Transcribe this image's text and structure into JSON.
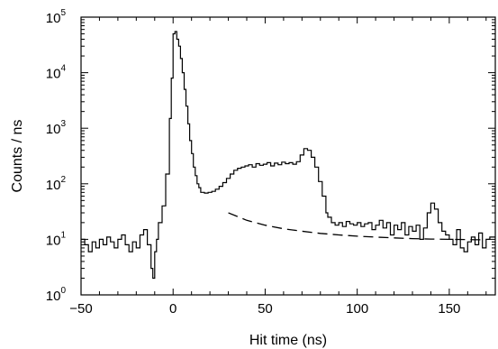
{
  "chart_data": {
    "type": "line",
    "xlabel": "Hit time (ns)",
    "ylabel": "Counts / ns",
    "xlim": [
      -50,
      175
    ],
    "ylim": [
      1,
      100000
    ],
    "yscale": "log",
    "grid": false,
    "x_ticks": [
      -50,
      0,
      50,
      100,
      150
    ],
    "x_tick_labels": [
      "−50",
      "0",
      "50",
      "100",
      "150"
    ],
    "y_ticks": [
      1,
      10,
      100,
      1000,
      10000,
      100000
    ],
    "y_tick_labels": [
      {
        "base": "10",
        "exp": "0"
      },
      {
        "base": "10",
        "exp": "1"
      },
      {
        "base": "10",
        "exp": "2"
      },
      {
        "base": "10",
        "exp": "3"
      },
      {
        "base": "10",
        "exp": "4"
      },
      {
        "base": "10",
        "exp": "5"
      }
    ],
    "series": [
      {
        "style": "histogram-step",
        "color": "#000000",
        "points": [
          [
            -50,
            10
          ],
          [
            -48,
            8
          ],
          [
            -46,
            6
          ],
          [
            -44,
            9
          ],
          [
            -42,
            7
          ],
          [
            -40,
            10
          ],
          [
            -38,
            8
          ],
          [
            -36,
            11
          ],
          [
            -34,
            9
          ],
          [
            -32,
            7
          ],
          [
            -30,
            10
          ],
          [
            -28,
            12
          ],
          [
            -26,
            8
          ],
          [
            -24,
            6
          ],
          [
            -22,
            9
          ],
          [
            -20,
            7
          ],
          [
            -18,
            12
          ],
          [
            -16,
            15
          ],
          [
            -14,
            8
          ],
          [
            -12,
            3
          ],
          [
            -11,
            2
          ],
          [
            -10,
            6
          ],
          [
            -9,
            10
          ],
          [
            -8,
            20
          ],
          [
            -6,
            40
          ],
          [
            -4,
            150
          ],
          [
            -2,
            1500
          ],
          [
            -1,
            8000
          ],
          [
            0,
            50000
          ],
          [
            1,
            55000
          ],
          [
            2,
            40000
          ],
          [
            3,
            30000
          ],
          [
            4,
            18000
          ],
          [
            5,
            10000
          ],
          [
            6,
            5000
          ],
          [
            7,
            2500
          ],
          [
            8,
            1200
          ],
          [
            9,
            600
          ],
          [
            10,
            350
          ],
          [
            11,
            200
          ],
          [
            12,
            140
          ],
          [
            13,
            100
          ],
          [
            14,
            85
          ],
          [
            15,
            70
          ],
          [
            17,
            68
          ],
          [
            19,
            70
          ],
          [
            21,
            73
          ],
          [
            23,
            80
          ],
          [
            25,
            90
          ],
          [
            27,
            105
          ],
          [
            29,
            125
          ],
          [
            31,
            150
          ],
          [
            33,
            175
          ],
          [
            35,
            190
          ],
          [
            37,
            200
          ],
          [
            39,
            210
          ],
          [
            41,
            220
          ],
          [
            43,
            200
          ],
          [
            45,
            230
          ],
          [
            47,
            215
          ],
          [
            49,
            225
          ],
          [
            51,
            240
          ],
          [
            53,
            210
          ],
          [
            55,
            235
          ],
          [
            57,
            220
          ],
          [
            59,
            245
          ],
          [
            61,
            230
          ],
          [
            63,
            240
          ],
          [
            65,
            225
          ],
          [
            67,
            250
          ],
          [
            69,
            330
          ],
          [
            71,
            430
          ],
          [
            73,
            400
          ],
          [
            75,
            300
          ],
          [
            77,
            200
          ],
          [
            79,
            110
          ],
          [
            81,
            60
          ],
          [
            83,
            30
          ],
          [
            84,
            25
          ],
          [
            86,
            20
          ],
          [
            88,
            18
          ],
          [
            90,
            20
          ],
          [
            92,
            17
          ],
          [
            94,
            21
          ],
          [
            96,
            19
          ],
          [
            98,
            18
          ],
          [
            100,
            20
          ],
          [
            102,
            17
          ],
          [
            104,
            19
          ],
          [
            106,
            20
          ],
          [
            108,
            15
          ],
          [
            110,
            18
          ],
          [
            112,
            22
          ],
          [
            114,
            16
          ],
          [
            116,
            20
          ],
          [
            118,
            12
          ],
          [
            120,
            18
          ],
          [
            122,
            15
          ],
          [
            124,
            20
          ],
          [
            126,
            12
          ],
          [
            128,
            17
          ],
          [
            130,
            14
          ],
          [
            132,
            18
          ],
          [
            134,
            10
          ],
          [
            136,
            16
          ],
          [
            138,
            30
          ],
          [
            140,
            45
          ],
          [
            142,
            35
          ],
          [
            144,
            20
          ],
          [
            146,
            14
          ],
          [
            148,
            12
          ],
          [
            150,
            10
          ],
          [
            152,
            8
          ],
          [
            154,
            15
          ],
          [
            156,
            7
          ],
          [
            158,
            6
          ],
          [
            160,
            9
          ],
          [
            162,
            11
          ],
          [
            164,
            8
          ],
          [
            166,
            13
          ],
          [
            168,
            7
          ],
          [
            170,
            10
          ],
          [
            172,
            11
          ]
        ]
      },
      {
        "style": "dashed-line",
        "color": "#000000",
        "points": [
          [
            30,
            30
          ],
          [
            40,
            22
          ],
          [
            50,
            18
          ],
          [
            60,
            15.5
          ],
          [
            70,
            14
          ],
          [
            80,
            12.8
          ],
          [
            90,
            12
          ],
          [
            100,
            11.4
          ],
          [
            110,
            11
          ],
          [
            120,
            10.6
          ],
          [
            130,
            10.3
          ],
          [
            140,
            10.1
          ],
          [
            150,
            10
          ],
          [
            160,
            9.9
          ],
          [
            168,
            9.8
          ]
        ]
      }
    ]
  }
}
